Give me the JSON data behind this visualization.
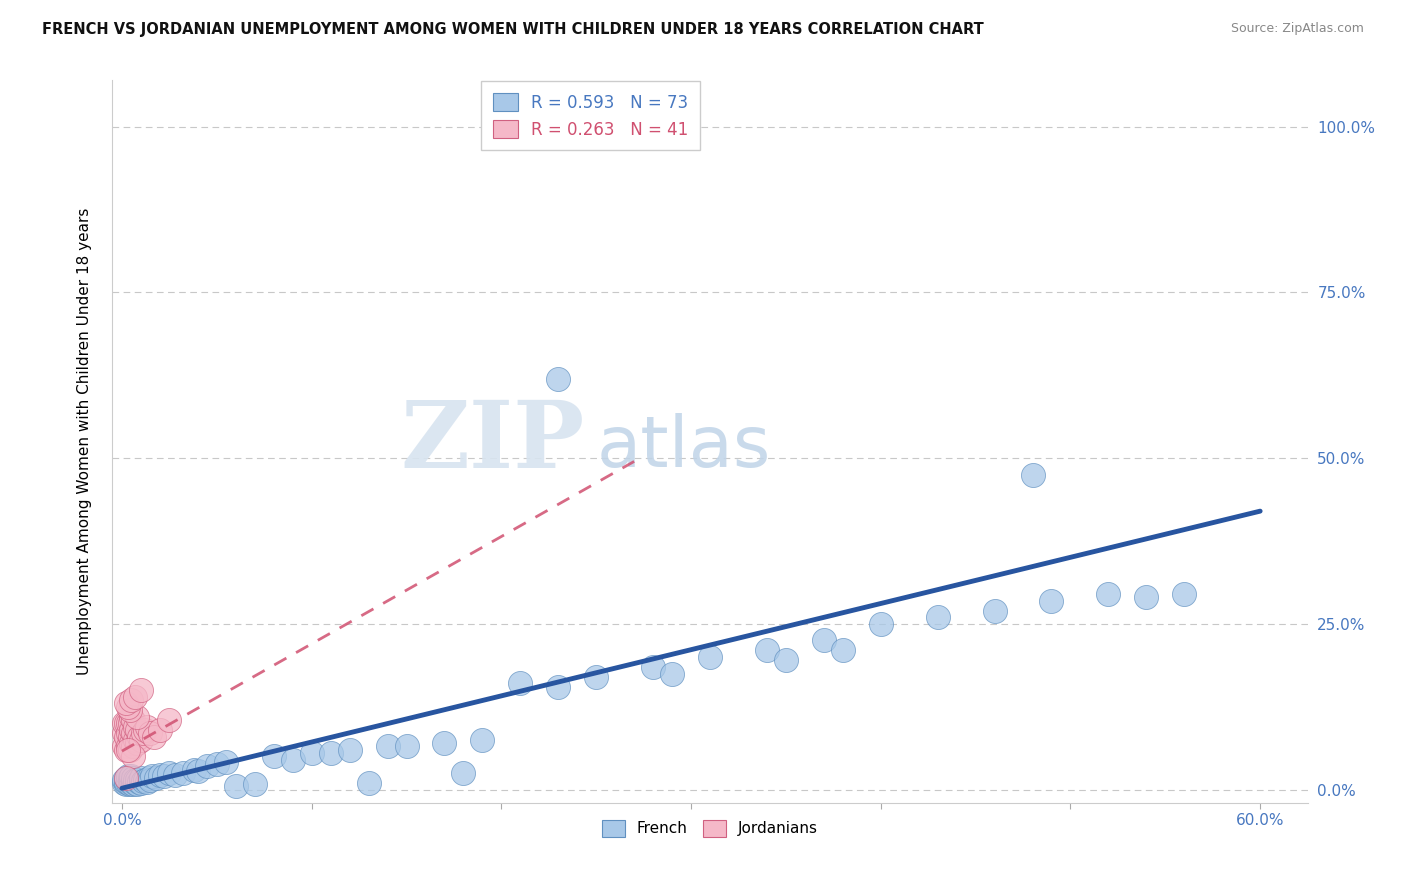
{
  "title": "FRENCH VS JORDANIAN UNEMPLOYMENT AMONG WOMEN WITH CHILDREN UNDER 18 YEARS CORRELATION CHART",
  "source": "Source: ZipAtlas.com",
  "ylabel": "Unemployment Among Women with Children Under 18 years",
  "xlim": [
    0.0,
    0.6
  ],
  "ylim": [
    0.0,
    1.05
  ],
  "yticks": [
    0.0,
    0.25,
    0.5,
    0.75,
    1.0
  ],
  "ytick_labels": [
    "0.0%",
    "25.0%",
    "50.0%",
    "75.0%",
    "100.0%"
  ],
  "french_R": "0.593",
  "french_N": "73",
  "jordanian_R": "0.263",
  "jordanian_N": "41",
  "french_color": "#a8c8e8",
  "jordanian_color": "#f5b8c8",
  "french_edge_color": "#6090c0",
  "jordanian_edge_color": "#d06080",
  "french_line_color": "#2855a0",
  "jordanian_line_color": "#d05070",
  "legend_label_french": "French",
  "legend_label_jordanian": "Jordanians",
  "watermark_zip": "ZIP",
  "watermark_atlas": "atlas",
  "french_points_x": [
    0.001,
    0.001,
    0.002,
    0.002,
    0.002,
    0.003,
    0.003,
    0.003,
    0.004,
    0.004,
    0.004,
    0.005,
    0.005,
    0.005,
    0.006,
    0.006,
    0.006,
    0.007,
    0.007,
    0.008,
    0.008,
    0.009,
    0.01,
    0.01,
    0.011,
    0.012,
    0.013,
    0.014,
    0.015,
    0.016,
    0.018,
    0.02,
    0.022,
    0.025,
    0.028,
    0.032,
    0.038,
    0.04,
    0.045,
    0.05,
    0.055,
    0.06,
    0.07,
    0.08,
    0.09,
    0.1,
    0.11,
    0.12,
    0.13,
    0.14,
    0.15,
    0.17,
    0.19,
    0.21,
    0.23,
    0.25,
    0.28,
    0.31,
    0.34,
    0.37,
    0.23,
    0.4,
    0.43,
    0.46,
    0.49,
    0.52,
    0.54,
    0.56,
    0.48,
    0.35,
    0.38,
    0.29,
    0.18
  ],
  "french_points_y": [
    0.01,
    0.015,
    0.008,
    0.012,
    0.018,
    0.01,
    0.015,
    0.02,
    0.008,
    0.013,
    0.018,
    0.01,
    0.015,
    0.02,
    0.008,
    0.013,
    0.018,
    0.01,
    0.015,
    0.008,
    0.015,
    0.012,
    0.01,
    0.018,
    0.013,
    0.015,
    0.012,
    0.018,
    0.015,
    0.02,
    0.018,
    0.022,
    0.02,
    0.025,
    0.022,
    0.025,
    0.03,
    0.028,
    0.035,
    0.038,
    0.042,
    0.005,
    0.008,
    0.05,
    0.045,
    0.055,
    0.055,
    0.06,
    0.01,
    0.065,
    0.065,
    0.07,
    0.075,
    0.16,
    0.155,
    0.17,
    0.185,
    0.2,
    0.21,
    0.225,
    0.62,
    0.25,
    0.26,
    0.27,
    0.285,
    0.295,
    0.29,
    0.295,
    0.475,
    0.195,
    0.21,
    0.175,
    0.025
  ],
  "jordanian_points_x": [
    0.001,
    0.001,
    0.001,
    0.002,
    0.002,
    0.002,
    0.003,
    0.003,
    0.003,
    0.004,
    0.004,
    0.004,
    0.005,
    0.005,
    0.005,
    0.006,
    0.006,
    0.006,
    0.007,
    0.007,
    0.008,
    0.008,
    0.009,
    0.01,
    0.011,
    0.012,
    0.013,
    0.015,
    0.017,
    0.02,
    0.025,
    0.008,
    0.004,
    0.003,
    0.002,
    0.005,
    0.007,
    0.01,
    0.006,
    0.003,
    0.002
  ],
  "jordanian_points_y": [
    0.065,
    0.085,
    0.1,
    0.06,
    0.08,
    0.1,
    0.065,
    0.085,
    0.1,
    0.06,
    0.08,
    0.1,
    0.07,
    0.09,
    0.11,
    0.065,
    0.085,
    0.105,
    0.075,
    0.095,
    0.07,
    0.09,
    0.08,
    0.075,
    0.085,
    0.09,
    0.095,
    0.085,
    0.08,
    0.09,
    0.105,
    0.11,
    0.12,
    0.125,
    0.13,
    0.135,
    0.14,
    0.15,
    0.05,
    0.06,
    0.018
  ],
  "french_trend_x": [
    0.0,
    0.6
  ],
  "french_trend_y": [
    0.002,
    0.42
  ],
  "jordanian_trend_x": [
    0.0,
    0.27
  ],
  "jordanian_trend_y": [
    0.058,
    0.495
  ]
}
